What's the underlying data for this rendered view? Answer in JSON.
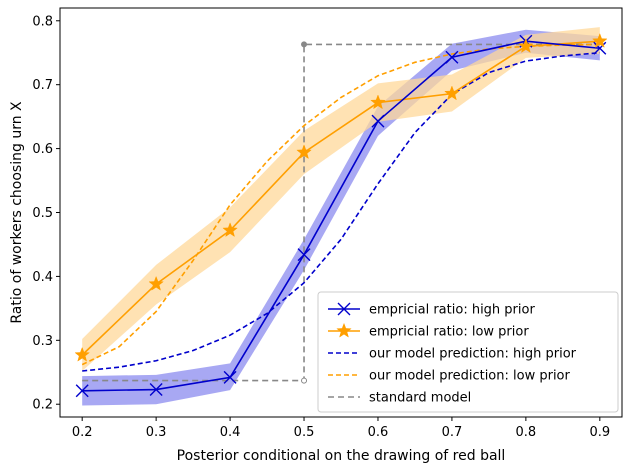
{
  "chart_data": {
    "type": "line",
    "title": "",
    "xlabel": "Posterior conditional on the drawing of red ball",
    "ylabel": "Ratio of workers choosing urn X",
    "xlim": [
      0.17,
      0.93
    ],
    "ylim": [
      0.18,
      0.82
    ],
    "xticks": [
      "0.2",
      "0.3",
      "0.4",
      "0.5",
      "0.6",
      "0.7",
      "0.8",
      "0.9"
    ],
    "yticks": [
      "0.2",
      "0.3",
      "0.4",
      "0.5",
      "0.6",
      "0.7",
      "0.8"
    ],
    "grid": false,
    "legend_position": "lower-right",
    "series": [
      {
        "name": "empricial ratio: high prior",
        "style": "solid",
        "marker": "x",
        "color": "#0000cc",
        "band_color": "#8b8bef",
        "x": [
          0.2,
          0.3,
          0.4,
          0.5,
          0.6,
          0.7,
          0.8,
          0.9
        ],
        "y": [
          0.221,
          0.223,
          0.242,
          0.434,
          0.643,
          0.743,
          0.768,
          0.757
        ],
        "band_low": [
          0.198,
          0.2,
          0.222,
          0.41,
          0.62,
          0.722,
          0.75,
          0.738
        ],
        "band_high": [
          0.244,
          0.246,
          0.264,
          0.458,
          0.666,
          0.764,
          0.786,
          0.776
        ]
      },
      {
        "name": "empricial ratio: low prior",
        "style": "solid",
        "marker": "star",
        "color": "#ff9f00",
        "band_color": "#ffd89a",
        "x": [
          0.2,
          0.3,
          0.4,
          0.5,
          0.6,
          0.7,
          0.8,
          0.9
        ],
        "y": [
          0.277,
          0.388,
          0.472,
          0.594,
          0.672,
          0.686,
          0.76,
          0.768
        ],
        "band_low": [
          0.252,
          0.356,
          0.438,
          0.56,
          0.642,
          0.658,
          0.742,
          0.748
        ],
        "band_high": [
          0.302,
          0.418,
          0.508,
          0.628,
          0.702,
          0.716,
          0.778,
          0.79
        ]
      },
      {
        "name": "our model prediction: high prior",
        "style": "dashed",
        "color": "#0000cc",
        "x": [
          0.2,
          0.25,
          0.3,
          0.35,
          0.4,
          0.45,
          0.5,
          0.55,
          0.6,
          0.65,
          0.7,
          0.75,
          0.8,
          0.85,
          0.9
        ],
        "y": [
          0.252,
          0.258,
          0.268,
          0.284,
          0.308,
          0.342,
          0.39,
          0.458,
          0.545,
          0.625,
          0.685,
          0.719,
          0.737,
          0.745,
          0.75
        ]
      },
      {
        "name": "our model prediction: low prior",
        "style": "dashed",
        "color": "#ff9f00",
        "x": [
          0.2,
          0.25,
          0.3,
          0.35,
          0.4,
          0.45,
          0.5,
          0.55,
          0.6,
          0.65,
          0.7,
          0.75,
          0.8,
          0.85,
          0.9
        ],
        "y": [
          0.262,
          0.29,
          0.345,
          0.425,
          0.512,
          0.58,
          0.636,
          0.68,
          0.714,
          0.735,
          0.748,
          0.756,
          0.76,
          0.762,
          0.763
        ]
      },
      {
        "name": "standard model",
        "style": "dashed",
        "color": "#888888",
        "x": [
          0.2,
          0.5,
          0.5,
          0.9
        ],
        "y": [
          0.237,
          0.237,
          0.763,
          0.763
        ]
      }
    ]
  }
}
